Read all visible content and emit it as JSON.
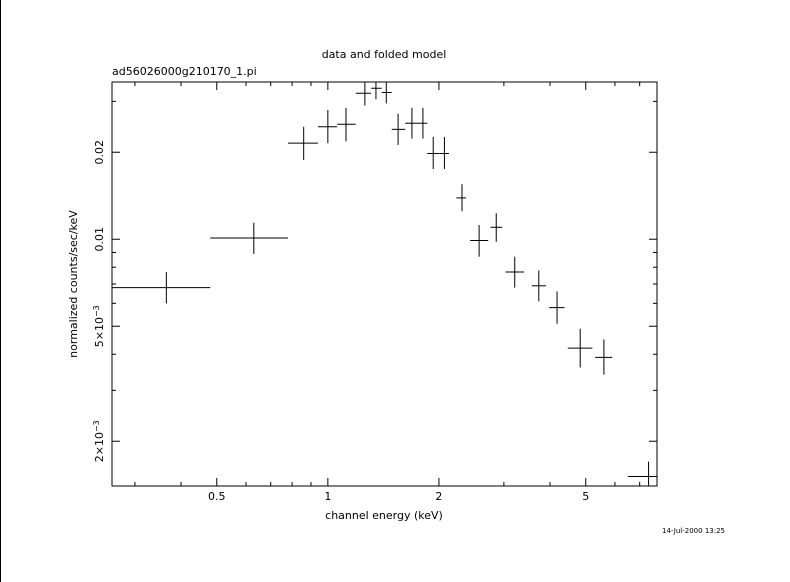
{
  "chart_data": {
    "type": "scatter",
    "title": "data and folded model",
    "subtitle": "ad56026000g210170_1.pi",
    "xlabel": "channel energy (keV)",
    "ylabel": "normalized counts/sec/keV",
    "x_scale": "log",
    "y_scale": "log",
    "xlim": [
      0.26,
      7.8
    ],
    "ylim": [
      0.0014,
      0.035
    ],
    "x_ticks": [
      {
        "value": 0.5,
        "label": "0.5"
      },
      {
        "value": 1,
        "label": "1"
      },
      {
        "value": 2,
        "label": "2"
      },
      {
        "value": 5,
        "label": "5"
      }
    ],
    "y_ticks": [
      {
        "value": 0.002,
        "label": "2×10",
        "exp": "−3"
      },
      {
        "value": 0.005,
        "label": "5×10",
        "exp": "−3"
      },
      {
        "value": 0.01,
        "label": "0.01"
      },
      {
        "value": 0.02,
        "label": "0.02"
      }
    ],
    "points": [
      {
        "x": 0.365,
        "xlo": 0.26,
        "xhi": 0.48,
        "y": 0.0068,
        "ylo": 0.006,
        "yhi": 0.0077
      },
      {
        "x": 0.63,
        "xlo": 0.48,
        "xhi": 0.78,
        "y": 0.0101,
        "ylo": 0.0089,
        "yhi": 0.0114
      },
      {
        "x": 0.86,
        "xlo": 0.78,
        "xhi": 0.94,
        "y": 0.0215,
        "ylo": 0.0188,
        "yhi": 0.0245
      },
      {
        "x": 1.0,
        "xlo": 0.94,
        "xhi": 1.06,
        "y": 0.0245,
        "ylo": 0.0215,
        "yhi": 0.028
      },
      {
        "x": 1.12,
        "xlo": 1.06,
        "xhi": 1.19,
        "y": 0.025,
        "ylo": 0.0218,
        "yhi": 0.0285
      },
      {
        "x": 1.26,
        "xlo": 1.19,
        "xhi": 1.31,
        "y": 0.032,
        "ylo": 0.029,
        "yhi": 0.035
      },
      {
        "x": 1.35,
        "xlo": 1.31,
        "xhi": 1.4,
        "y": 0.0333,
        "ylo": 0.0305,
        "yhi": 0.035
      },
      {
        "x": 1.44,
        "xlo": 1.4,
        "xhi": 1.49,
        "y": 0.0322,
        "ylo": 0.0295,
        "yhi": 0.035
      },
      {
        "x": 1.55,
        "xlo": 1.49,
        "xhi": 1.62,
        "y": 0.024,
        "ylo": 0.0212,
        "yhi": 0.0272
      },
      {
        "x": 1.69,
        "xlo": 1.62,
        "xhi": 1.76,
        "y": 0.0252,
        "ylo": 0.0223,
        "yhi": 0.0285
      },
      {
        "x": 1.81,
        "xlo": 1.76,
        "xhi": 1.86,
        "y": 0.0252,
        "ylo": 0.0223,
        "yhi": 0.0285
      },
      {
        "x": 1.93,
        "xlo": 1.86,
        "xhi": 2.01,
        "y": 0.0198,
        "ylo": 0.0175,
        "yhi": 0.0226
      },
      {
        "x": 2.07,
        "xlo": 2.01,
        "xhi": 2.13,
        "y": 0.0198,
        "ylo": 0.0175,
        "yhi": 0.0226
      },
      {
        "x": 2.31,
        "xlo": 2.23,
        "xhi": 2.37,
        "y": 0.0139,
        "ylo": 0.0125,
        "yhi": 0.0155
      },
      {
        "x": 2.57,
        "xlo": 2.43,
        "xhi": 2.72,
        "y": 0.0099,
        "ylo": 0.0087,
        "yhi": 0.0112
      },
      {
        "x": 2.86,
        "xlo": 2.76,
        "xhi": 2.97,
        "y": 0.011,
        "ylo": 0.0098,
        "yhi": 0.0123
      },
      {
        "x": 3.21,
        "xlo": 3.03,
        "xhi": 3.4,
        "y": 0.0077,
        "ylo": 0.0068,
        "yhi": 0.0087
      },
      {
        "x": 3.73,
        "xlo": 3.57,
        "xhi": 3.9,
        "y": 0.0069,
        "ylo": 0.0061,
        "yhi": 0.0078
      },
      {
        "x": 4.18,
        "xlo": 3.98,
        "xhi": 4.38,
        "y": 0.0058,
        "ylo": 0.0051,
        "yhi": 0.0066
      },
      {
        "x": 4.83,
        "xlo": 4.47,
        "xhi": 5.21,
        "y": 0.0042,
        "ylo": 0.0036,
        "yhi": 0.0049
      },
      {
        "x": 5.6,
        "xlo": 5.3,
        "xhi": 5.9,
        "y": 0.0039,
        "ylo": 0.0034,
        "yhi": 0.0045
      },
      {
        "x": 7.4,
        "xlo": 6.5,
        "xhi": 7.8,
        "y": 0.00151,
        "ylo": 0.0014,
        "yhi": 0.0017
      }
    ],
    "grid": false,
    "legend": "none"
  },
  "timestamp": "14-Jul-2000 13:25"
}
